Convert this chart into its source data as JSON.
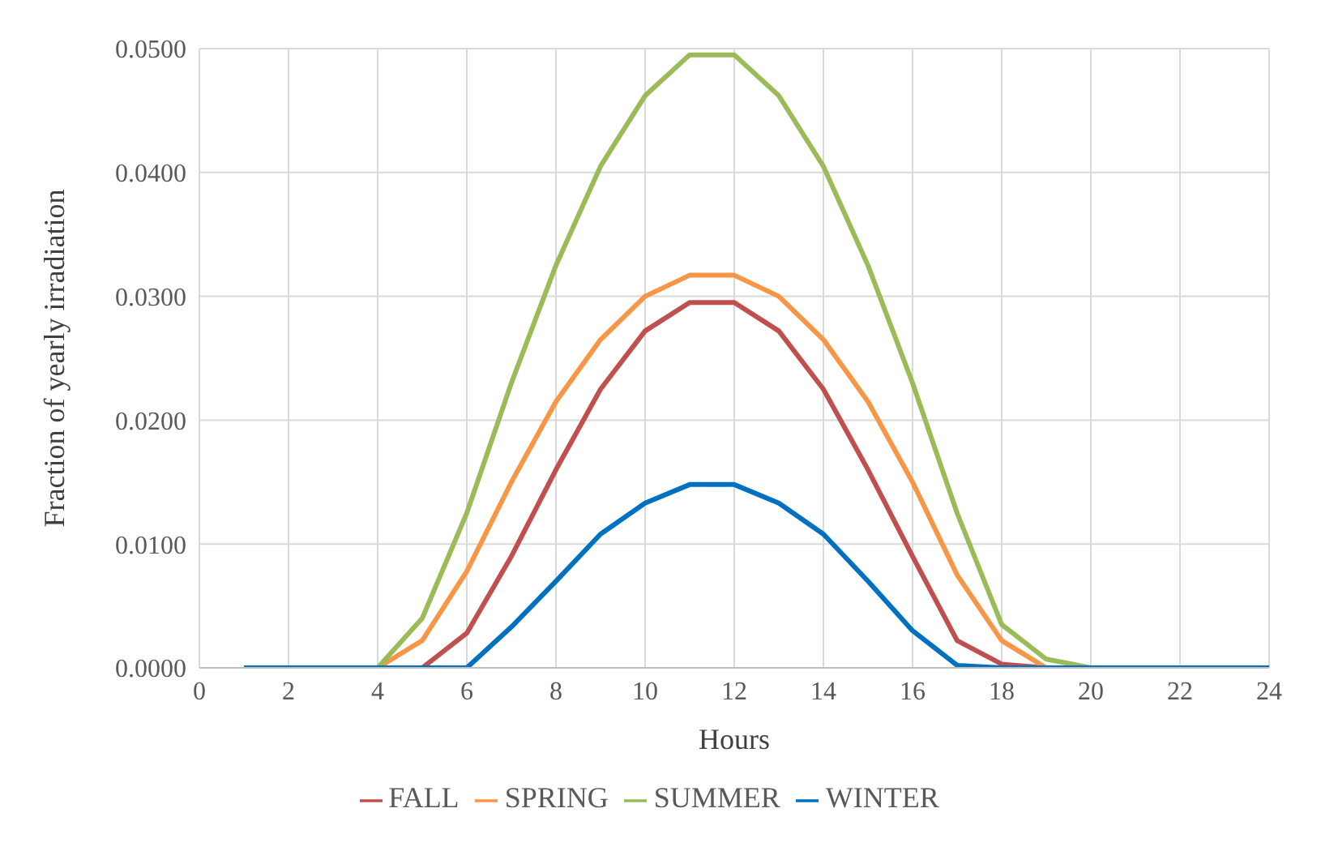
{
  "chart_data": {
    "type": "line",
    "xlabel": "Hours",
    "ylabel": "Fraction of yearly irradiation",
    "x": [
      1,
      2,
      3,
      4,
      5,
      6,
      7,
      8,
      9,
      10,
      11,
      12,
      13,
      14,
      15,
      16,
      17,
      18,
      19,
      20,
      21,
      22,
      23,
      24
    ],
    "series": [
      {
        "name": "FALL",
        "color": "#c0504d",
        "values": [
          null,
          null,
          null,
          0,
          0,
          0.0028,
          0.009,
          0.016,
          0.0225,
          0.0272,
          0.0295,
          0.0295,
          0.0272,
          0.0225,
          0.016,
          0.009,
          0.0022,
          0.0003,
          0,
          0,
          null,
          null,
          null,
          null
        ]
      },
      {
        "name": "SPRING",
        "color": "#f79646",
        "values": [
          null,
          null,
          null,
          0,
          0.0022,
          0.0078,
          0.015,
          0.0215,
          0.0265,
          0.03,
          0.0317,
          0.0317,
          0.03,
          0.0265,
          0.0215,
          0.015,
          0.0075,
          0.0022,
          0,
          0,
          null,
          null,
          null,
          null
        ]
      },
      {
        "name": "SUMMER",
        "color": "#9bbb59",
        "values": [
          null,
          null,
          null,
          0,
          0.004,
          0.0125,
          0.023,
          0.0325,
          0.0405,
          0.0462,
          0.0495,
          0.0495,
          0.0462,
          0.0405,
          0.0325,
          0.023,
          0.0125,
          0.0035,
          0.0007,
          0,
          null,
          null,
          null,
          null
        ]
      },
      {
        "name": "WINTER",
        "color": "#0070c0",
        "values": [
          0,
          0,
          0,
          0,
          0,
          0,
          0.0033,
          0.007,
          0.0108,
          0.0133,
          0.0148,
          0.0148,
          0.0133,
          0.0108,
          0.007,
          0.003,
          0.0002,
          0,
          0,
          0,
          0,
          0,
          0,
          0
        ]
      }
    ],
    "xlim": [
      0,
      24
    ],
    "xticks": [
      0,
      2,
      4,
      6,
      8,
      10,
      12,
      14,
      16,
      18,
      20,
      22,
      24
    ],
    "ylim": [
      0,
      0.05
    ],
    "yticks": [
      {
        "value": 0,
        "label": "0.0000"
      },
      {
        "value": 0.01,
        "label": "0.0100"
      },
      {
        "value": 0.02,
        "label": "0.0200"
      },
      {
        "value": 0.03,
        "label": "0.0300"
      },
      {
        "value": 0.04,
        "label": "0.0400"
      },
      {
        "value": 0.05,
        "label": "0.0500"
      }
    ],
    "grid": true,
    "legend": "bottom",
    "marker": "none",
    "line_style": "solid"
  }
}
